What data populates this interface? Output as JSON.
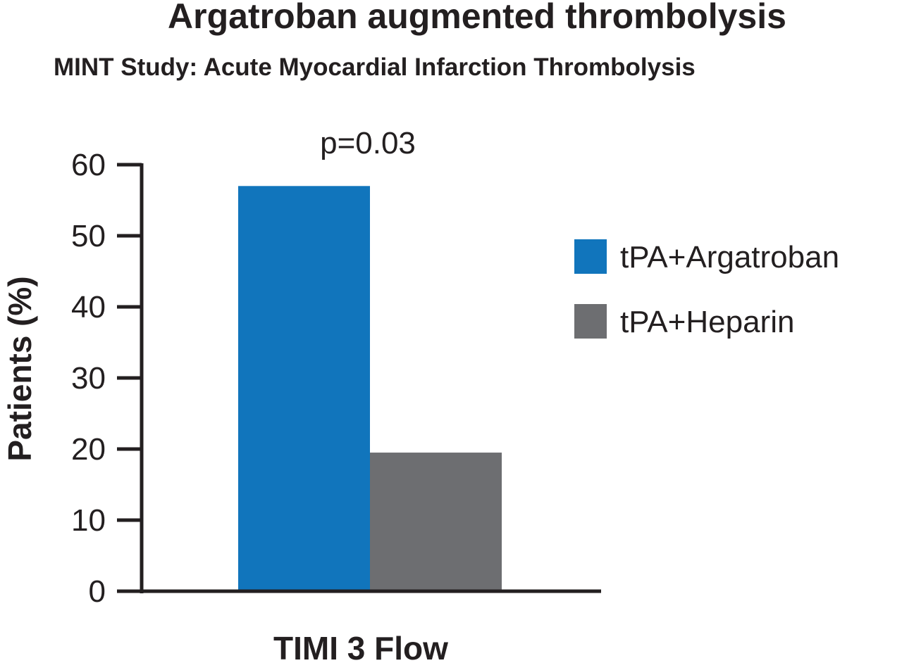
{
  "chart_data": {
    "type": "bar",
    "title": "Argatroban augmented thrombolysis",
    "subtitle": "MINT Study: Acute Myocardial Infarction Thrombolysis",
    "categories": [
      "TIMI 3 Flow"
    ],
    "series": [
      {
        "name": "tPA+Argatroban",
        "values": [
          57
        ],
        "color": "#1175bc"
      },
      {
        "name": "tPA+Heparin",
        "values": [
          19.5
        ],
        "color": "#6d6e71"
      }
    ],
    "xlabel": "TIMI 3 Flow",
    "ylabel": "Patients (%)",
    "ylim": [
      0,
      60
    ],
    "yticks": [
      "0",
      "10",
      "20",
      "30",
      "40",
      "50",
      "60"
    ],
    "annotation": "p=0.03",
    "grid": false,
    "legend_position": "right"
  }
}
